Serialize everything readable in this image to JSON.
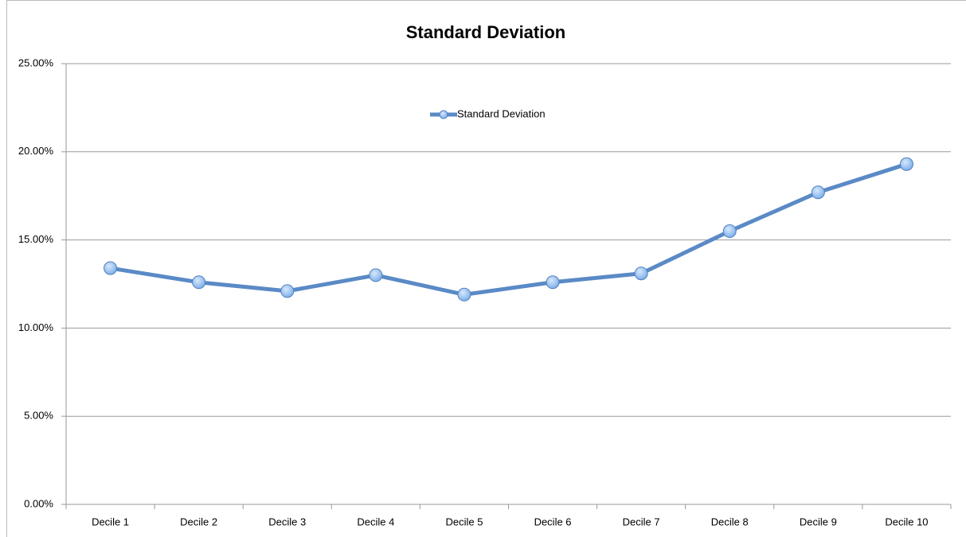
{
  "chart_data": {
    "type": "line",
    "title": "Standard Deviation",
    "categories": [
      "Decile 1",
      "Decile 2",
      "Decile 3",
      "Decile 4",
      "Decile 5",
      "Decile 6",
      "Decile 7",
      "Decile 8",
      "Decile 9",
      "Decile 10"
    ],
    "series": [
      {
        "name": "Standard Deviation",
        "color": "#5a8ac6",
        "values": [
          13.4,
          12.6,
          12.1,
          13.0,
          11.9,
          12.6,
          13.1,
          15.5,
          17.7,
          19.3
        ]
      }
    ],
    "ylim": [
      0,
      25
    ],
    "yticks": [
      {
        "value": 0,
        "label": "0.00%"
      },
      {
        "value": 5,
        "label": "5.00%"
      },
      {
        "value": 10,
        "label": "10.00%"
      },
      {
        "value": 15,
        "label": "15.00%"
      },
      {
        "value": 20,
        "label": "20.00%"
      },
      {
        "value": 25,
        "label": "25.00%"
      }
    ],
    "grid": true,
    "legend": "top"
  }
}
